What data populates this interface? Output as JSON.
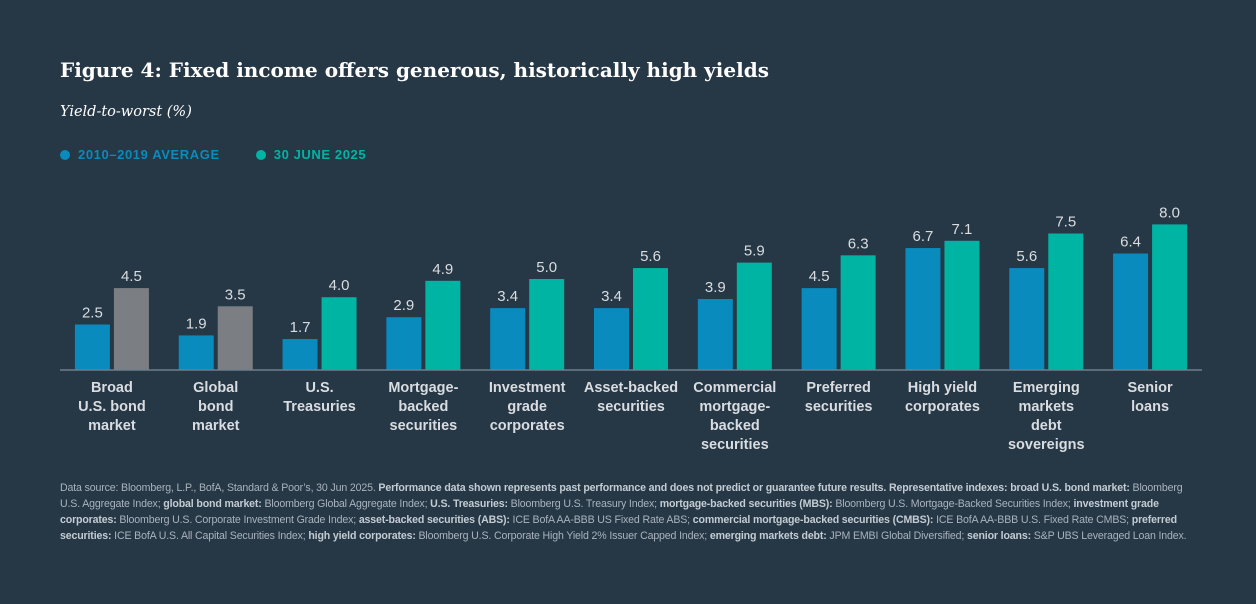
{
  "title": "Figure 4: Fixed income offers generous, historically high yields",
  "subtitle": "Yield-to-worst (%)",
  "colors": {
    "background": "#263746",
    "series_2010_2019": "#0a8bbd",
    "series_2025": "#00b4a4",
    "series_2025_highlight_gray": "#7b7f83",
    "axis": "#6f7f8c",
    "value_label": "#d9dde1",
    "category_label": "#d9dde1"
  },
  "chart_data": {
    "type": "bar",
    "title": "Figure 4: Fixed income offers generous, historically high yields",
    "ylabel": "Yield-to-worst (%)",
    "xlabel": "",
    "ylim": [
      0,
      8.5
    ],
    "grid": false,
    "legend_position": "top-left",
    "categories": [
      [
        "Broad",
        "U.S. bond",
        "market"
      ],
      [
        "Global",
        "bond",
        "market"
      ],
      [
        "U.S.",
        "Treasuries"
      ],
      [
        "Mortgage-",
        "backed",
        "securities"
      ],
      [
        "Investment",
        "grade",
        "corporates"
      ],
      [
        "Asset-backed",
        "securities"
      ],
      [
        "Commercial",
        "mortgage-",
        "backed",
        "securities"
      ],
      [
        "Preferred",
        "securities"
      ],
      [
        "High yield",
        "corporates"
      ],
      [
        "Emerging",
        "markets",
        "debt",
        "sovereigns"
      ],
      [
        "Senior",
        "loans"
      ]
    ],
    "series": [
      {
        "name": "2010–2019 AVERAGE",
        "values": [
          2.5,
          1.9,
          1.7,
          2.9,
          3.4,
          3.4,
          3.9,
          4.5,
          6.7,
          5.6,
          6.4
        ]
      },
      {
        "name": "30 JUNE 2025",
        "values": [
          4.5,
          3.5,
          4.0,
          4.9,
          5.0,
          5.6,
          5.9,
          6.3,
          7.1,
          7.5,
          8.0
        ],
        "gray_indices": [
          0,
          1
        ]
      }
    ]
  },
  "footnote": [
    {
      "t": "Data source: Bloomberg, L.P., BofA, Standard & Poor’s, 30 Jun 2025. ",
      "b": false
    },
    {
      "t": "Performance data shown represents past performance and does not predict or guarantee future results. Representative indexes: broad U.S. bond market:",
      "b": true
    },
    {
      "t": " Bloomberg U.S. Aggregate Index; ",
      "b": false
    },
    {
      "t": "global bond market:",
      "b": true
    },
    {
      "t": " Bloomberg Global Aggregate Index; ",
      "b": false
    },
    {
      "t": "U.S. Treasuries:",
      "b": true
    },
    {
      "t": " Bloomberg U.S. Treasury Index; ",
      "b": false
    },
    {
      "t": "mortgage-backed securities (MBS):",
      "b": true
    },
    {
      "t": " Bloomberg U.S. Mortgage-Backed Securities Index; ",
      "b": false
    },
    {
      "t": "investment grade corporates:",
      "b": true
    },
    {
      "t": " Bloomberg U.S. Corporate Investment Grade Index; ",
      "b": false
    },
    {
      "t": "asset-backed securities (ABS):",
      "b": true
    },
    {
      "t": " ICE BofA AA-BBB US Fixed Rate ABS; ",
      "b": false
    },
    {
      "t": "commercial mortgage-backed securities (CMBS):",
      "b": true
    },
    {
      "t": " ICE BofA AA-BBB U.S. Fixed Rate CMBS; ",
      "b": false
    },
    {
      "t": "preferred securities:",
      "b": true
    },
    {
      "t": " ICE BofA U.S. All Capital Securities Index; ",
      "b": false
    },
    {
      "t": "high yield corporates:",
      "b": true
    },
    {
      "t": " Bloomberg U.S. Corporate High Yield 2% Issuer Capped Index; ",
      "b": false
    },
    {
      "t": "emerging markets debt:",
      "b": true
    },
    {
      "t": " JPM EMBI Global Diversified; ",
      "b": false
    },
    {
      "t": "senior loans:",
      "b": true
    },
    {
      "t": " S&P UBS Leveraged Loan Index.",
      "b": false
    }
  ]
}
